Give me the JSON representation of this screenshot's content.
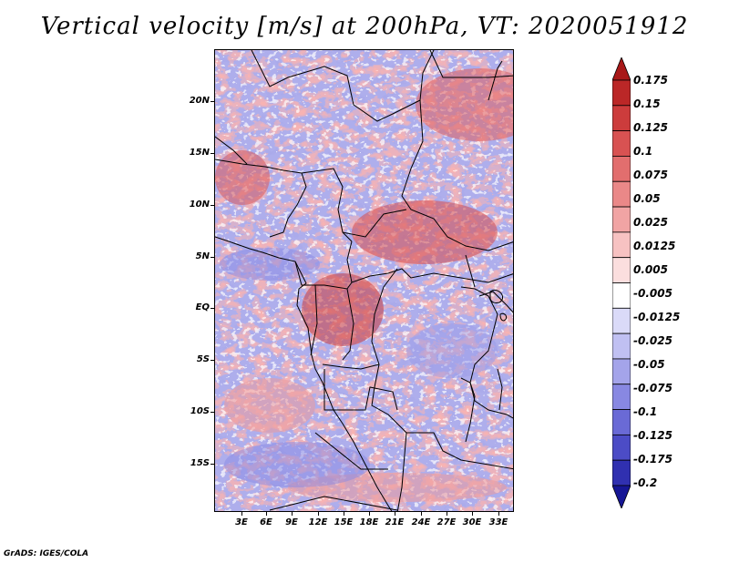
{
  "title": "Vertical velocity [m/s] at 200hPa, VT: 2020051912",
  "footer": "GrADS: IGES/COLA",
  "map": {
    "field": "Vertical velocity",
    "units": "m/s",
    "level": "200hPa",
    "valid_time": "2020051912",
    "region": "Central Africa"
  },
  "lat_labels": [
    "20N",
    "15N",
    "10N",
    "5N",
    "EQ",
    "5S",
    "10S",
    "15S"
  ],
  "lon_labels": [
    "3E",
    "6E",
    "9E",
    "12E",
    "15E",
    "18E",
    "21E",
    "24E",
    "27E",
    "30E",
    "33E"
  ],
  "colorbar": {
    "labels": [
      "0.175",
      "0.15",
      "0.125",
      "0.1",
      "0.075",
      "0.05",
      "0.025",
      "0.0125",
      "0.005",
      "-0.005",
      "-0.0125",
      "-0.025",
      "-0.05",
      "-0.075",
      "-0.1",
      "-0.125",
      "-0.175",
      "-0.2"
    ],
    "colors": [
      "#a81818",
      "#bb2727",
      "#cc3c3c",
      "#d85252",
      "#e26e6e",
      "#ea8888",
      "#f1a4a4",
      "#f7c2c2",
      "#fbdede",
      "#ffffff",
      "#dadaf8",
      "#c0c0f2",
      "#a4a4ea",
      "#8888e2",
      "#6a6ad6",
      "#4c4cc6",
      "#3030b0",
      "#161695"
    ]
  }
}
